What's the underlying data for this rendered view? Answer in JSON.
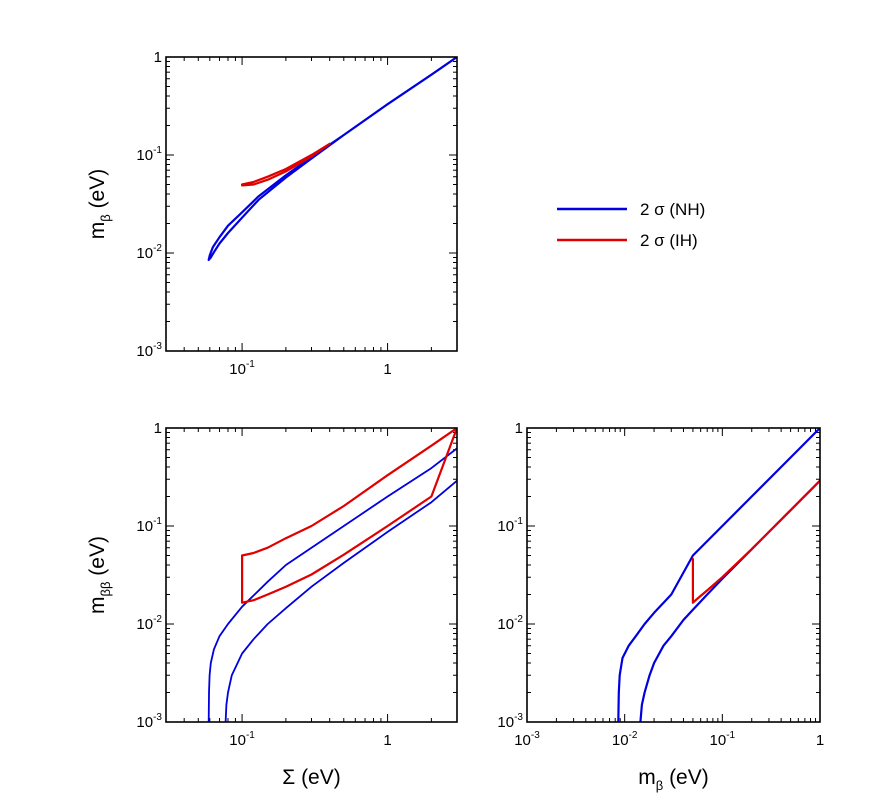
{
  "chart_data": [
    {
      "id": "top-left",
      "type": "line",
      "scale": "log-log",
      "title": "",
      "xlabel": "",
      "ylabel": {
        "main": "m",
        "sub": "β",
        "unit": "(eV)"
      },
      "xlim": [
        0.03,
        3.0
      ],
      "ylim": [
        0.001,
        1
      ],
      "x_ticks": [
        {
          "value": 0.1,
          "base": "10",
          "exp": "-1"
        },
        {
          "value": 1,
          "base": "1",
          "exp": ""
        }
      ],
      "y_ticks": [
        {
          "value": 0.001,
          "base": "10",
          "exp": "-3"
        },
        {
          "value": 0.01,
          "base": "10",
          "exp": "-2"
        },
        {
          "value": 0.1,
          "base": "10",
          "exp": "-1"
        },
        {
          "value": 1,
          "base": "1",
          "exp": ""
        }
      ],
      "series": [
        {
          "name": "2σ (NH)",
          "color": "#0000e0",
          "stroke_width": 2.2,
          "x": [
            0.059,
            0.06,
            0.063,
            0.07,
            0.08,
            0.1,
            0.13,
            0.2,
            0.3,
            0.5,
            1.0,
            2.0,
            3.0,
            2.0,
            1.0,
            0.5,
            0.3,
            0.2,
            0.13,
            0.1,
            0.08,
            0.07,
            0.064,
            0.061,
            0.059
          ],
          "y": [
            0.0085,
            0.0095,
            0.0115,
            0.0145,
            0.019,
            0.026,
            0.038,
            0.062,
            0.095,
            0.16,
            0.33,
            0.66,
            1.0,
            0.66,
            0.33,
            0.16,
            0.092,
            0.059,
            0.035,
            0.023,
            0.016,
            0.0125,
            0.0102,
            0.009,
            0.0085
          ]
        },
        {
          "name": "2σ (IH)",
          "color": "#e00000",
          "stroke_width": 2.2,
          "x": [
            0.1,
            0.12,
            0.15,
            0.2,
            0.3,
            0.4,
            0.3,
            0.2,
            0.15,
            0.12,
            0.1,
            0.1
          ],
          "y": [
            0.05,
            0.053,
            0.06,
            0.072,
            0.1,
            0.13,
            0.097,
            0.068,
            0.056,
            0.05,
            0.049,
            0.05
          ]
        }
      ]
    },
    {
      "id": "bottom-left",
      "type": "line",
      "scale": "log-log",
      "title": "",
      "xlabel": {
        "main": "Σ",
        "sub": "",
        "unit": "(eV)"
      },
      "ylabel": {
        "main": "m",
        "sub": "ββ",
        "unit": "(eV)"
      },
      "xlim": [
        0.03,
        3.0
      ],
      "ylim": [
        0.001,
        1
      ],
      "x_ticks": [
        {
          "value": 0.1,
          "base": "10",
          "exp": "-1"
        },
        {
          "value": 1,
          "base": "1",
          "exp": ""
        }
      ],
      "y_ticks": [
        {
          "value": 0.001,
          "base": "10",
          "exp": "-3"
        },
        {
          "value": 0.01,
          "base": "10",
          "exp": "-2"
        },
        {
          "value": 0.1,
          "base": "10",
          "exp": "-1"
        },
        {
          "value": 1,
          "base": "1",
          "exp": ""
        }
      ],
      "series": [
        {
          "name": "2σ (NH)",
          "color": "#0000e0",
          "stroke_width": 1.8,
          "x": [
            0.059,
            0.0592,
            0.0598,
            0.061,
            0.064,
            0.07,
            0.08,
            0.1,
            0.15,
            0.2,
            0.3,
            0.5,
            1.0,
            2.0,
            3.0
          ],
          "y": [
            0.001,
            0.002,
            0.003,
            0.004,
            0.0055,
            0.0075,
            0.01,
            0.015,
            0.027,
            0.04,
            0.06,
            0.1,
            0.2,
            0.39,
            0.62
          ],
          "_": "NH upper boundary"
        },
        {
          "name": "2σ (NH)",
          "color": "#0000e0",
          "stroke_width": 1.8,
          "x": [
            0.077,
            0.078,
            0.08,
            0.085,
            0.1,
            0.12,
            0.15,
            0.2,
            0.3,
            0.5,
            1.0,
            2.0,
            3.0
          ],
          "y": [
            0.001,
            0.0015,
            0.002,
            0.003,
            0.005,
            0.007,
            0.01,
            0.0145,
            0.024,
            0.042,
            0.087,
            0.175,
            0.29
          ],
          "_": "NH lower boundary"
        },
        {
          "name": "2σ (IH)",
          "color": "#e00000",
          "stroke_width": 2.2,
          "x": [
            0.1,
            0.12,
            0.15,
            0.2,
            0.3,
            0.5,
            1.0,
            2.0,
            3.0,
            2.0,
            1.0,
            0.5,
            0.3,
            0.2,
            0.15,
            0.12,
            0.1,
            0.1
          ],
          "y": [
            0.05,
            0.053,
            0.06,
            0.075,
            0.1,
            0.16,
            0.33,
            0.66,
            1.0,
            0.2,
            0.1,
            0.051,
            0.032,
            0.024,
            0.02,
            0.0175,
            0.0165,
            0.05
          ]
        }
      ]
    },
    {
      "id": "bottom-right",
      "type": "line",
      "scale": "log-log",
      "title": "",
      "xlabel": {
        "main": "m",
        "sub": "β",
        "unit": "(eV)"
      },
      "ylabel": {
        "main": "",
        "sub": "",
        "unit": ""
      },
      "xlim": [
        0.001,
        1
      ],
      "ylim": [
        0.001,
        1
      ],
      "x_ticks": [
        {
          "value": 0.001,
          "base": "10",
          "exp": "-3"
        },
        {
          "value": 0.01,
          "base": "10",
          "exp": "-2"
        },
        {
          "value": 0.1,
          "base": "10",
          "exp": "-1"
        },
        {
          "value": 1,
          "base": "1",
          "exp": ""
        }
      ],
      "y_ticks": [
        {
          "value": 0.001,
          "base": "10",
          "exp": "-3"
        },
        {
          "value": 0.01,
          "base": "10",
          "exp": "-2"
        },
        {
          "value": 0.1,
          "base": "10",
          "exp": "-1"
        },
        {
          "value": 1,
          "base": "1",
          "exp": ""
        }
      ],
      "series": [
        {
          "name": "2σ (NH)",
          "color": "#0000e0",
          "stroke_width": 2.2,
          "x": [
            0.0086,
            0.0087,
            0.0089,
            0.0095,
            0.011,
            0.013,
            0.016,
            0.02,
            0.03,
            0.05,
            0.1,
            0.2,
            0.5,
            1.0
          ],
          "y": [
            0.001,
            0.002,
            0.003,
            0.0045,
            0.006,
            0.0075,
            0.01,
            0.013,
            0.02,
            0.05,
            0.1,
            0.2,
            0.5,
            1.0
          ],
          "_": "NH upper boundary"
        },
        {
          "name": "2σ (NH)",
          "color": "#0000e0",
          "stroke_width": 2.2,
          "x": [
            0.0145,
            0.015,
            0.016,
            0.018,
            0.02,
            0.025,
            0.03,
            0.04,
            0.05,
            0.07,
            0.1,
            0.2,
            0.5,
            1.0
          ],
          "y": [
            0.001,
            0.0015,
            0.002,
            0.003,
            0.004,
            0.006,
            0.0075,
            0.011,
            0.014,
            0.02,
            0.029,
            0.058,
            0.145,
            0.29
          ],
          "_": "NH lower boundary"
        },
        {
          "name": "2σ (IH)",
          "color": "#e00000",
          "stroke_width": 2.2,
          "x": [
            0.05,
            0.05,
            0.055,
            0.07,
            0.1,
            0.2,
            0.5,
            1.0
          ],
          "y": [
            0.046,
            0.0165,
            0.018,
            0.022,
            0.03,
            0.058,
            0.145,
            0.29
          ]
        }
      ]
    }
  ],
  "legend": {
    "position": "right of top panel",
    "entries": [
      {
        "label": "2 σ (NH)",
        "color": "#0000e0"
      },
      {
        "label": "2 σ (IH)",
        "color": "#e00000"
      }
    ]
  }
}
